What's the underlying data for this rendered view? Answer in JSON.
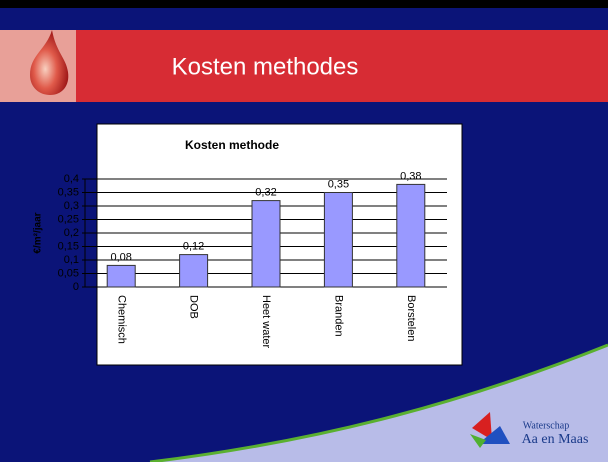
{
  "header": {
    "title": "Kosten methodes"
  },
  "chart_data": {
    "type": "bar",
    "title": "Kosten methode",
    "y_label": "€/m²/jaar",
    "categories": [
      "Chemisch",
      "DOB",
      "Heet water",
      "Branden",
      "Borstelen"
    ],
    "values": [
      0.08,
      0.12,
      0.32,
      0.35,
      0.38
    ],
    "value_labels": [
      "0,08",
      "0,12",
      "0,32",
      "0,35",
      "0,38"
    ],
    "color": "#9999ff",
    "ylim": [
      0,
      0.4
    ],
    "yticks": [
      0,
      {
        "value": 0.05,
        "label": "0,05"
      },
      {
        "value": 0.1,
        "label": "0,1"
      },
      {
        "value": 0.15,
        "label": "0,15"
      },
      {
        "value": 0.2,
        "label": "0,2"
      },
      {
        "value": 0.25,
        "label": "0,25"
      },
      {
        "value": 0.3,
        "label": "0,3"
      },
      {
        "value": 0.35,
        "label": "0,35"
      },
      {
        "value": 0.4,
        "label": "0,4"
      }
    ],
    "grid": true
  },
  "logo": {
    "line1": "Waterschap",
    "line2": "Aa en Maas"
  }
}
